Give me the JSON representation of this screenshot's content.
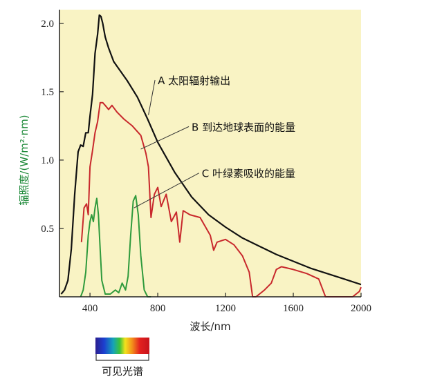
{
  "colors": {
    "plot_background": "#f9f3c4",
    "axis": "#222222",
    "solar_output": "#111111",
    "surface_energy": "#c8282c",
    "chlorophyll": "#2e9a3c",
    "ylabel_color": "#1f8a3a"
  },
  "chart_data": {
    "type": "line",
    "xlabel": "波长/nm",
    "ylabel": "辐照度/(W/m²·nm)",
    "xlim": [
      220,
      2000
    ],
    "ylim": [
      0,
      2.1
    ],
    "x_ticks": [
      "400",
      "800",
      "1200",
      "1600",
      "2000"
    ],
    "y_ticks": [
      "0.5",
      "1.0",
      "1.5",
      "2.0"
    ],
    "grid": false,
    "series": [
      {
        "name": "A 太阳辐射输出",
        "x": [
          230,
          250,
          270,
          290,
          310,
          330,
          345,
          360,
          375,
          390,
          400,
          415,
          430,
          445,
          455,
          465,
          475,
          490,
          510,
          540,
          580,
          620,
          680,
          740,
          800,
          900,
          1000,
          1100,
          1200,
          1300,
          1400,
          1500,
          1600,
          1700,
          1800,
          1900,
          2000
        ],
        "y": [
          0.02,
          0.05,
          0.12,
          0.35,
          0.75,
          1.06,
          1.11,
          1.1,
          1.2,
          1.2,
          1.32,
          1.48,
          1.78,
          1.92,
          2.06,
          2.05,
          2.0,
          1.9,
          1.82,
          1.72,
          1.65,
          1.58,
          1.46,
          1.3,
          1.13,
          0.91,
          0.73,
          0.6,
          0.51,
          0.43,
          0.37,
          0.31,
          0.26,
          0.21,
          0.17,
          0.13,
          0.09
        ]
      },
      {
        "name": "B 到达地球表面的能量",
        "x": [
          350,
          365,
          380,
          390,
          400,
          415,
          430,
          445,
          460,
          475,
          490,
          510,
          530,
          560,
          600,
          650,
          700,
          730,
          745,
          760,
          780,
          800,
          820,
          850,
          880,
          910,
          930,
          950,
          990,
          1050,
          1110,
          1130,
          1150,
          1200,
          1250,
          1300,
          1340,
          1360,
          1380,
          1430,
          1470,
          1500,
          1530,
          1600,
          1680,
          1750,
          1790,
          1800,
          1850,
          1900,
          1950,
          1990,
          2000
        ],
        "y": [
          0.4,
          0.65,
          0.68,
          0.6,
          0.95,
          1.07,
          1.2,
          1.28,
          1.42,
          1.42,
          1.4,
          1.37,
          1.4,
          1.35,
          1.3,
          1.25,
          1.18,
          1.05,
          0.95,
          0.58,
          0.75,
          0.8,
          0.66,
          0.75,
          0.55,
          0.62,
          0.4,
          0.63,
          0.6,
          0.58,
          0.45,
          0.34,
          0.4,
          0.42,
          0.38,
          0.3,
          0.18,
          0.0,
          0.0,
          0.05,
          0.1,
          0.2,
          0.22,
          0.2,
          0.17,
          0.13,
          0.0,
          0.0,
          0.0,
          0.0,
          0.0,
          0.04,
          0.07
        ]
      },
      {
        "name": "C 叶绿素吸收的能量",
        "x": [
          345,
          360,
          375,
          390,
          400,
          410,
          420,
          430,
          440,
          450,
          460,
          470,
          490,
          520,
          550,
          570,
          590,
          610,
          625,
          640,
          655,
          670,
          685,
          700,
          720,
          740,
          760
        ],
        "y": [
          0.0,
          0.05,
          0.18,
          0.45,
          0.55,
          0.6,
          0.55,
          0.65,
          0.72,
          0.6,
          0.35,
          0.12,
          0.02,
          0.02,
          0.05,
          0.03,
          0.1,
          0.05,
          0.15,
          0.45,
          0.7,
          0.74,
          0.6,
          0.3,
          0.05,
          0.0,
          0.0
        ]
      }
    ],
    "annotations": [
      {
        "text": "A 太阳辐射输出",
        "x": 800,
        "y": 1.58
      },
      {
        "text": "B 到达地球表面的能量",
        "x": 1000,
        "y": 1.24
      },
      {
        "text": "C 叶绿素吸收的能量",
        "x": 1060,
        "y": 0.9
      }
    ],
    "visible_spectrum": {
      "label": "可见光谱",
      "range_nm": [
        380,
        750
      ]
    }
  }
}
